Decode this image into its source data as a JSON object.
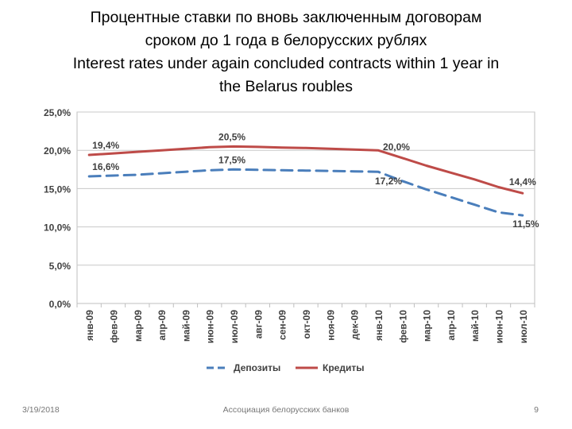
{
  "title": {
    "line1": "Процентные ставки по вновь заключенным договорам",
    "line2": "сроком до 1 года в белорусских рублях",
    "line3": "Interest rates under again concluded contracts within 1 year in",
    "line4": "the Belarus roubles"
  },
  "chart_data": {
    "type": "line",
    "categories": [
      "янв-09",
      "фев-09",
      "мар-09",
      "апр-09",
      "май-09",
      "июн-09",
      "июл-09",
      "авг-09",
      "сен-09",
      "окт-09",
      "ноя-09",
      "дек-09",
      "янв-10",
      "фев-10",
      "мар-10",
      "апр-10",
      "май-10",
      "июн-10",
      "июл-10"
    ],
    "ylim": [
      0,
      25
    ],
    "yticks": [
      0,
      5,
      10,
      15,
      20,
      25
    ],
    "ytick_labels": [
      "0,0%",
      "5,0%",
      "10,0%",
      "15,0%",
      "20,0%",
      "25,0%"
    ],
    "grid": true,
    "legend_position": "bottom",
    "series": [
      {
        "name": "Депозиты",
        "color": "#4a7ebb",
        "style": "dashed",
        "values": [
          16.6,
          16.7,
          16.8,
          17.0,
          17.2,
          17.4,
          17.5,
          17.45,
          17.4,
          17.35,
          17.3,
          17.25,
          17.2,
          16.0,
          14.9,
          13.9,
          12.9,
          11.9,
          11.5
        ],
        "data_labels": [
          {
            "index": 0,
            "text": "16,6%"
          },
          {
            "index": 6,
            "text": "17,5%"
          },
          {
            "index": 12,
            "text": "17,2%"
          },
          {
            "index": 18,
            "text": "11,5%"
          }
        ]
      },
      {
        "name": "Кредиты",
        "color": "#be4b48",
        "style": "solid",
        "values": [
          19.4,
          19.6,
          19.8,
          20.0,
          20.2,
          20.4,
          20.5,
          20.45,
          20.35,
          20.3,
          20.2,
          20.1,
          20.0,
          19.0,
          18.0,
          17.1,
          16.2,
          15.2,
          14.4
        ],
        "data_labels": [
          {
            "index": 0,
            "text": "19,4%"
          },
          {
            "index": 6,
            "text": "20,5%"
          },
          {
            "index": 12,
            "text": "20,0%"
          },
          {
            "index": 18,
            "text": "14,4%"
          }
        ]
      }
    ]
  },
  "footer": {
    "date": "3/19/2018",
    "organization": "Ассоциация белорусских банков",
    "page_number": "9"
  }
}
